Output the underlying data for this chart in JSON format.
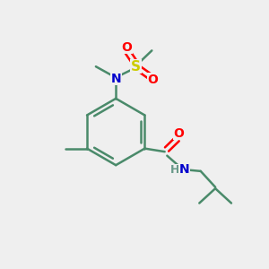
{
  "background_color": "#efefef",
  "bond_color": "#4a8a6a",
  "atom_colors": {
    "O": "#ff0000",
    "N": "#0000cc",
    "S": "#cccc00",
    "H_gray": "#6a9a8a"
  },
  "figsize": [
    3.0,
    3.0
  ],
  "dpi": 100
}
